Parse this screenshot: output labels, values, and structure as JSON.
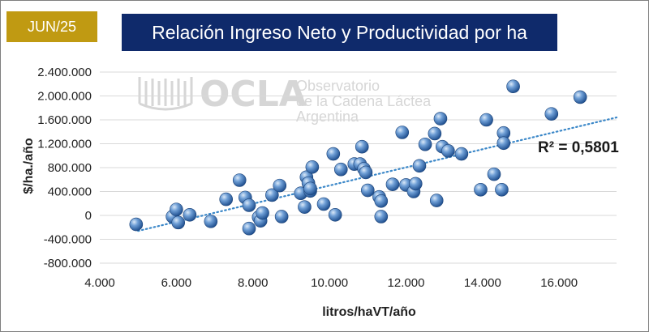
{
  "header": {
    "date_label": "JUN/25",
    "title": "Relación Ingreso Neto y Productividad por ha"
  },
  "watermark": {
    "logo": "OCLA",
    "line1": "Observatorio",
    "line2": "de la Cadena Láctea",
    "line3": "Argentina"
  },
  "colors": {
    "marker": "#4a7fbf",
    "trendline": "#3a87c8",
    "title_bg": "#0f2a6b",
    "badge_bg": "#c09a12"
  },
  "chart_data": {
    "type": "scatter",
    "xlabel": "litros/haVT/año",
    "ylabel": "$/ha./año",
    "xlim": [
      4000,
      17500
    ],
    "ylim": [
      -800000,
      2400000
    ],
    "x_ticks": [
      4000,
      6000,
      8000,
      10000,
      12000,
      14000,
      16000
    ],
    "x_tick_labels": [
      "4.000",
      "6.000",
      "8.000",
      "10.000",
      "12.000",
      "14.000",
      "16.000"
    ],
    "y_ticks": [
      2400000,
      2000000,
      1600000,
      1200000,
      800000,
      400000,
      0,
      -400000,
      -800000
    ],
    "y_tick_labels": [
      "2.400.000",
      "2.000.000",
      "1.600.000",
      "1.200.000",
      "800.000",
      "400.000",
      "0",
      "-400.000",
      "-800.000"
    ],
    "grid": "horizontal",
    "trendline": {
      "style": "dotted linear",
      "r2_label": "R² = 0,5801",
      "from": [
        5000,
        -260000
      ],
      "to": [
        17500,
        1640000
      ]
    },
    "points": [
      [
        4950,
        -150000
      ],
      [
        5900,
        -20000
      ],
      [
        6000,
        100000
      ],
      [
        6050,
        -120000
      ],
      [
        6350,
        10000
      ],
      [
        6900,
        -100000
      ],
      [
        7300,
        270000
      ],
      [
        7650,
        590000
      ],
      [
        7800,
        300000
      ],
      [
        7900,
        170000
      ],
      [
        7900,
        -220000
      ],
      [
        8150,
        -30000
      ],
      [
        8200,
        -90000
      ],
      [
        8250,
        40000
      ],
      [
        8500,
        340000
      ],
      [
        8700,
        500000
      ],
      [
        8750,
        -20000
      ],
      [
        9250,
        370000
      ],
      [
        9350,
        140000
      ],
      [
        9400,
        640000
      ],
      [
        9450,
        540000
      ],
      [
        9500,
        410000
      ],
      [
        9500,
        450000
      ],
      [
        9550,
        810000
      ],
      [
        9850,
        190000
      ],
      [
        10100,
        1030000
      ],
      [
        10150,
        10000
      ],
      [
        10300,
        770000
      ],
      [
        10650,
        860000
      ],
      [
        10800,
        860000
      ],
      [
        10850,
        1150000
      ],
      [
        10900,
        780000
      ],
      [
        10950,
        720000
      ],
      [
        11000,
        420000
      ],
      [
        11300,
        310000
      ],
      [
        11350,
        240000
      ],
      [
        11350,
        -20000
      ],
      [
        11650,
        520000
      ],
      [
        11900,
        1390000
      ],
      [
        12000,
        510000
      ],
      [
        12200,
        400000
      ],
      [
        12250,
        530000
      ],
      [
        12350,
        830000
      ],
      [
        12500,
        1190000
      ],
      [
        12750,
        1370000
      ],
      [
        12800,
        250000
      ],
      [
        12900,
        1620000
      ],
      [
        12950,
        1150000
      ],
      [
        13100,
        1080000
      ],
      [
        13450,
        1030000
      ],
      [
        13950,
        430000
      ],
      [
        14100,
        1600000
      ],
      [
        14300,
        690000
      ],
      [
        14500,
        430000
      ],
      [
        14550,
        1380000
      ],
      [
        14550,
        1210000
      ],
      [
        14800,
        2160000
      ],
      [
        15800,
        1700000
      ],
      [
        16550,
        1980000
      ]
    ]
  }
}
